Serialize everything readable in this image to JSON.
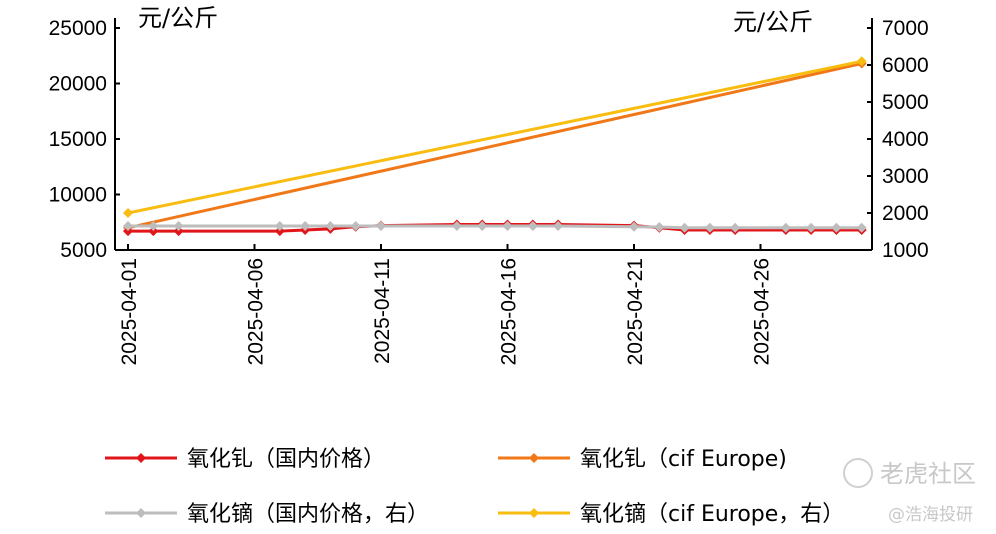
{
  "chart_data": {
    "type": "line",
    "left_unit": "元/公斤",
    "right_unit": "元/公斤",
    "left_ylim": [
      5000,
      25000
    ],
    "right_ylim": [
      1000,
      7000
    ],
    "left_ticks": [
      "25000",
      "20000",
      "15000",
      "10000",
      "5000"
    ],
    "right_ticks": [
      "7000",
      "6000",
      "5000",
      "4000",
      "3000",
      "2000",
      "1000"
    ],
    "x_ticks": [
      "2025-04-01",
      "2025-04-06",
      "2025-04-11",
      "2025-04-16",
      "2025-04-21",
      "2025-04-26"
    ],
    "x_range": [
      "2025-04-01",
      "2025-04-30"
    ],
    "grid": false,
    "legend_placement": "bottom",
    "series": [
      {
        "name": "氧化钆（国内价格）",
        "axis": "left",
        "color": "#e0161b",
        "x": [
          "2025-04-01",
          "2025-04-02",
          "2025-04-03",
          "2025-04-07",
          "2025-04-08",
          "2025-04-09",
          "2025-04-10",
          "2025-04-11",
          "2025-04-14",
          "2025-04-15",
          "2025-04-16",
          "2025-04-17",
          "2025-04-18",
          "2025-04-21",
          "2025-04-22",
          "2025-04-23",
          "2025-04-24",
          "2025-04-25",
          "2025-04-27",
          "2025-04-28",
          "2025-04-29",
          "2025-04-30"
        ],
        "values": [
          6700,
          6700,
          6700,
          6700,
          6800,
          6900,
          7100,
          7200,
          7300,
          7300,
          7300,
          7300,
          7300,
          7200,
          7000,
          6800,
          6800,
          6800,
          6800,
          6800,
          6800,
          6800
        ]
      },
      {
        "name": "氧化钆（cif Europe)",
        "axis": "left",
        "color": "#f07818",
        "x": [
          "2025-04-01",
          "2025-04-30"
        ],
        "values": [
          7000,
          21800
        ]
      },
      {
        "name": "氧化镝（国内价格，右）",
        "axis": "right",
        "color": "#bdbdbd",
        "x": [
          "2025-04-01",
          "2025-04-02",
          "2025-04-03",
          "2025-04-07",
          "2025-04-08",
          "2025-04-09",
          "2025-04-10",
          "2025-04-11",
          "2025-04-14",
          "2025-04-15",
          "2025-04-16",
          "2025-04-17",
          "2025-04-18",
          "2025-04-21",
          "2025-04-22",
          "2025-04-23",
          "2025-04-24",
          "2025-04-25",
          "2025-04-27",
          "2025-04-28",
          "2025-04-29",
          "2025-04-30"
        ],
        "values": [
          1650,
          1650,
          1650,
          1650,
          1650,
          1650,
          1650,
          1650,
          1650,
          1650,
          1650,
          1650,
          1650,
          1630,
          1620,
          1600,
          1600,
          1600,
          1600,
          1600,
          1600,
          1600
        ]
      },
      {
        "name": "氧化镝（cif Europe，右）",
        "axis": "right",
        "color": "#f8bd10",
        "x": [
          "2025-04-01",
          "2025-04-30"
        ],
        "values": [
          2000,
          6100
        ]
      }
    ]
  },
  "watermark": {
    "logo_text": "老虎社区",
    "handle": "@浩海投研"
  }
}
